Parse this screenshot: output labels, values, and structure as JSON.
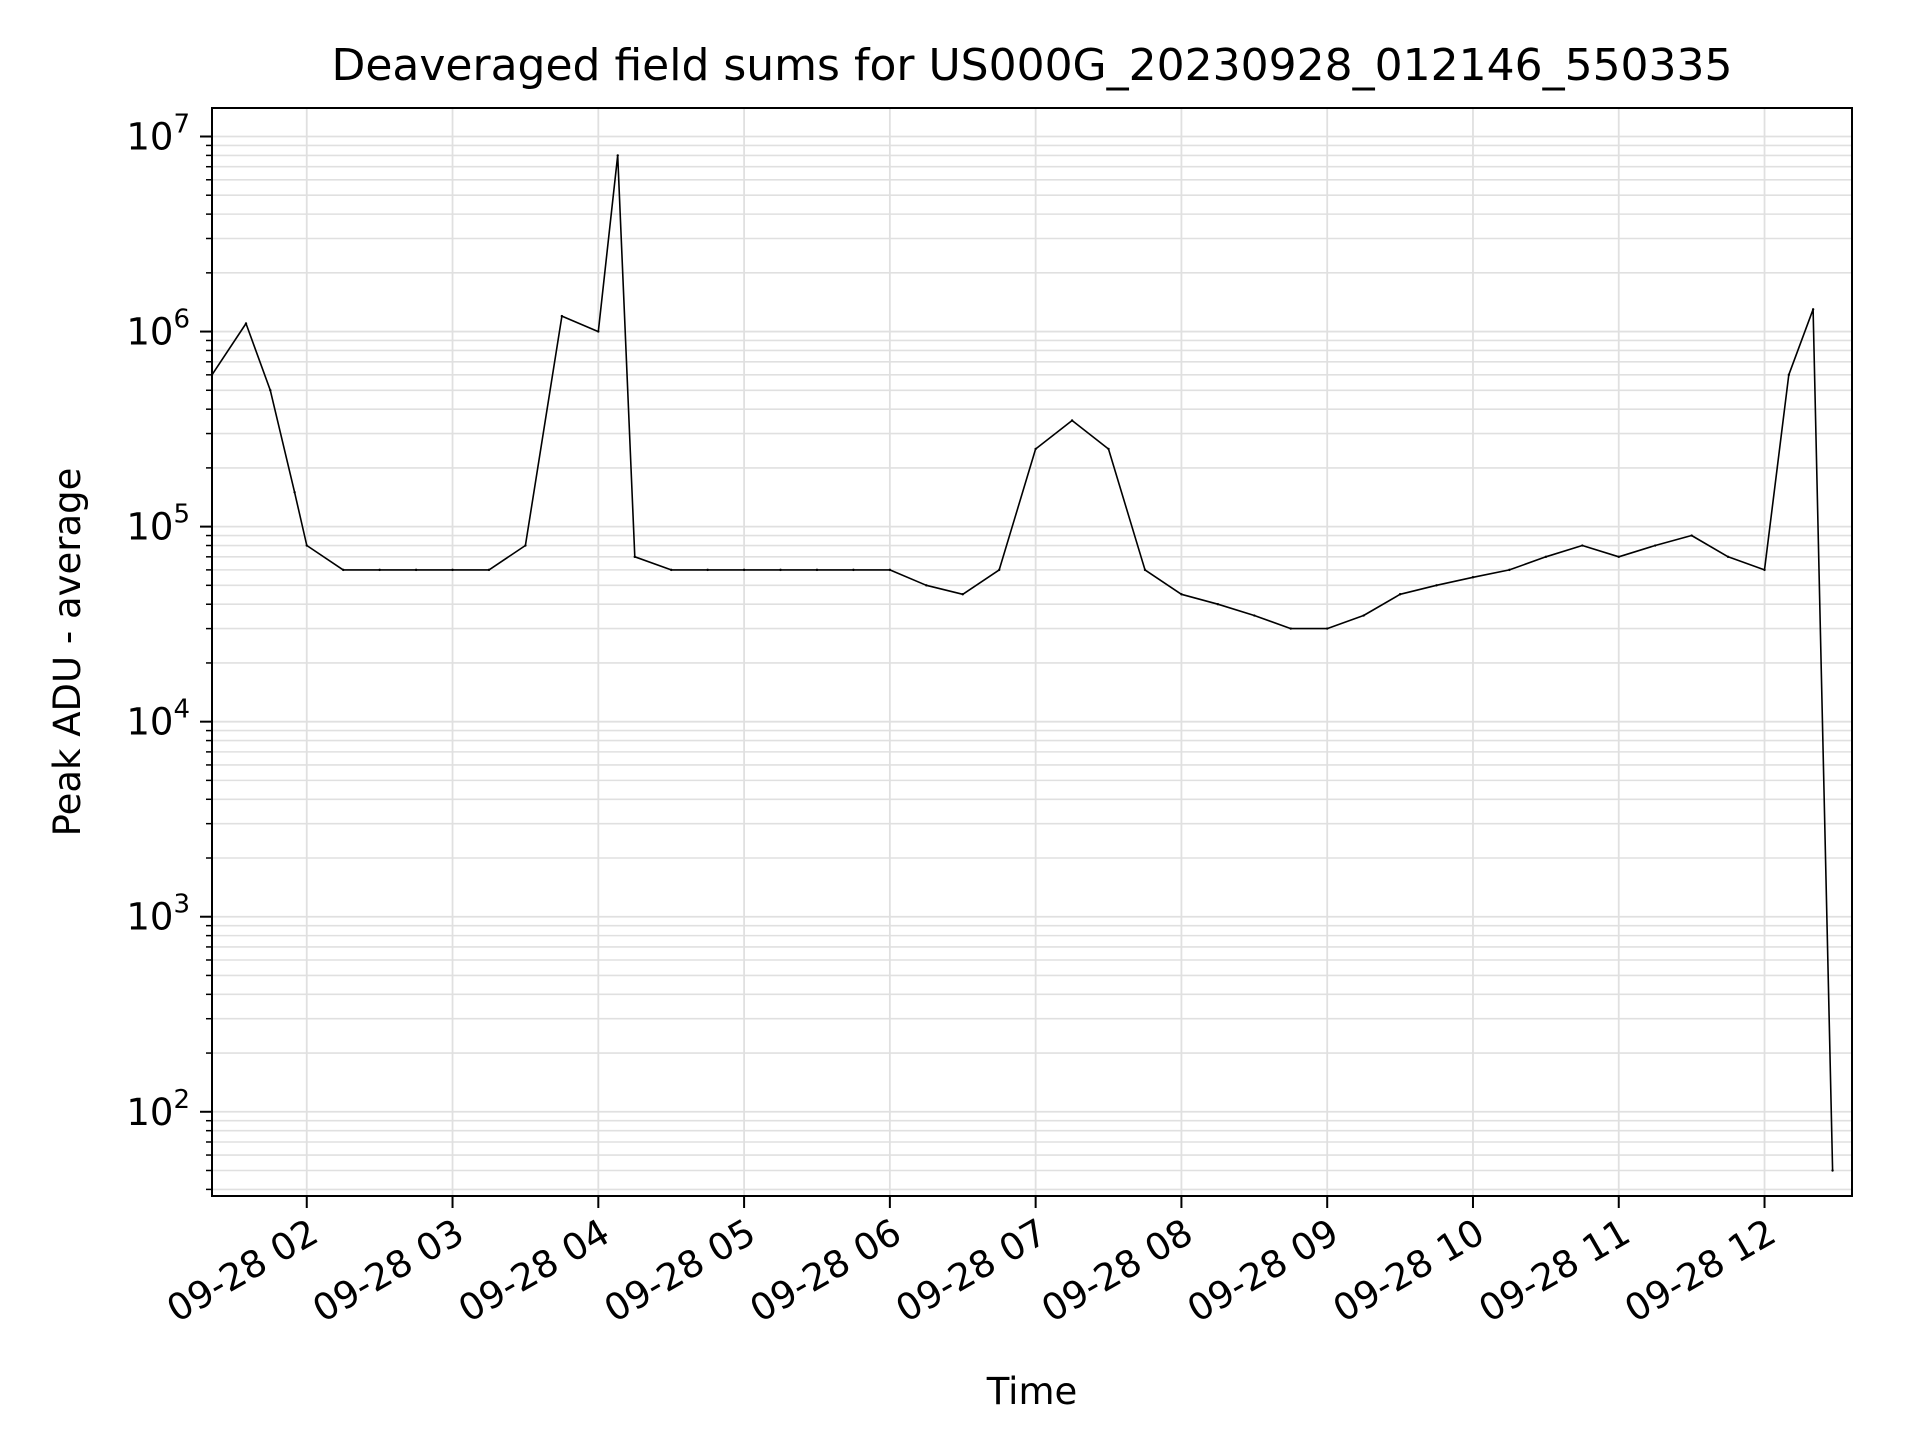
{
  "chart_data": {
    "type": "line",
    "title": "Deaveraged field sums for US000G_20230928_012146_550335",
    "xlabel": "Time",
    "ylabel": "Peak ADU - average",
    "yscale": "log",
    "ylim": [
      37,
      14000000
    ],
    "xlim": [
      "2023-09-28 01:21",
      "2023-09-28 12:36"
    ],
    "grid": true,
    "line_color": "#000000",
    "grid_color": "#e0e0e0",
    "x_ticks": [
      "09-28 02",
      "09-28 03",
      "09-28 04",
      "09-28 05",
      "09-28 06",
      "09-28 07",
      "09-28 08",
      "09-28 09",
      "09-28 10",
      "09-28 11",
      "09-28 12"
    ],
    "y_ticks": [
      {
        "base": "10",
        "exp": "2",
        "value": 100
      },
      {
        "base": "10",
        "exp": "3",
        "value": 1000
      },
      {
        "base": "10",
        "exp": "4",
        "value": 10000
      },
      {
        "base": "10",
        "exp": "5",
        "value": 100000
      },
      {
        "base": "10",
        "exp": "6",
        "value": 1000000
      },
      {
        "base": "10",
        "exp": "7",
        "value": 10000000
      }
    ],
    "series": [
      {
        "x": [
          "2023-09-28 01:21",
          "2023-09-28 01:35",
          "2023-09-28 01:45",
          "2023-09-28 01:55",
          "2023-09-28 02:00",
          "2023-09-28 02:15",
          "2023-09-28 02:30",
          "2023-09-28 02:45",
          "2023-09-28 03:00",
          "2023-09-28 03:15",
          "2023-09-28 03:30",
          "2023-09-28 03:45",
          "2023-09-28 04:00",
          "2023-09-28 04:08",
          "2023-09-28 04:15",
          "2023-09-28 04:30",
          "2023-09-28 04:45",
          "2023-09-28 05:00",
          "2023-09-28 05:15",
          "2023-09-28 05:30",
          "2023-09-28 05:45",
          "2023-09-28 06:00",
          "2023-09-28 06:15",
          "2023-09-28 06:30",
          "2023-09-28 06:45",
          "2023-09-28 07:00",
          "2023-09-28 07:15",
          "2023-09-28 07:30",
          "2023-09-28 07:45",
          "2023-09-28 08:00",
          "2023-09-28 08:15",
          "2023-09-28 08:30",
          "2023-09-28 08:45",
          "2023-09-28 09:00",
          "2023-09-28 09:15",
          "2023-09-28 09:30",
          "2023-09-28 09:45",
          "2023-09-28 10:00",
          "2023-09-28 10:15",
          "2023-09-28 10:30",
          "2023-09-28 10:45",
          "2023-09-28 11:00",
          "2023-09-28 11:15",
          "2023-09-28 11:30",
          "2023-09-28 11:45",
          "2023-09-28 12:00",
          "2023-09-28 12:10",
          "2023-09-28 12:20",
          "2023-09-28 12:28"
        ],
        "values": [
          600000,
          1100000,
          500000,
          150000,
          80000,
          60000,
          60000,
          60000,
          60000,
          60000,
          80000,
          1200000,
          1000000,
          8000000,
          70000,
          60000,
          60000,
          60000,
          60000,
          60000,
          60000,
          60000,
          50000,
          45000,
          60000,
          250000,
          350000,
          250000,
          60000,
          45000,
          40000,
          35000,
          30000,
          30000,
          35000,
          45000,
          50000,
          55000,
          60000,
          70000,
          80000,
          70000,
          80000,
          90000,
          70000,
          60000,
          600000,
          1300000,
          50
        ]
      }
    ]
  }
}
